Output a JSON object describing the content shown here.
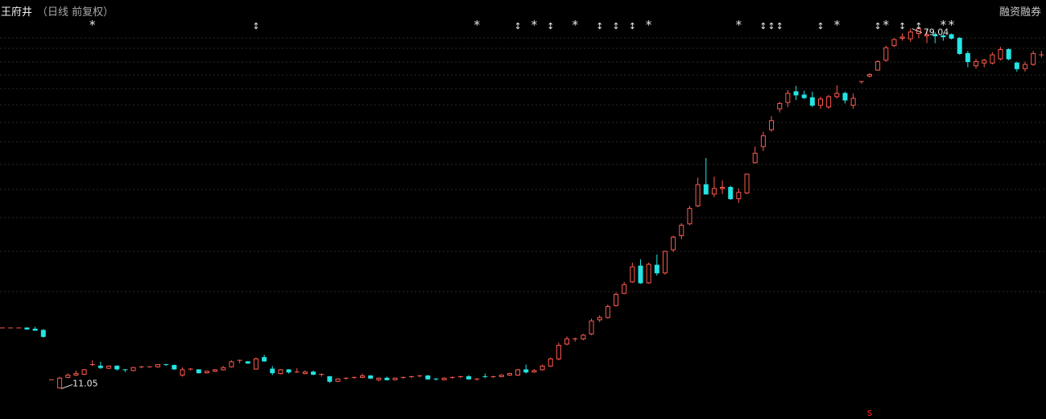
{
  "header": {
    "stock_name": "王府井",
    "mode": "（日线 前复权）",
    "right_label": "融资融券"
  },
  "colors": {
    "up": "#ff5a4e",
    "down": "#24e4e4",
    "marker": "#e8e8e8",
    "grid": "#2a2a2a",
    "label": "#e8e8e8",
    "bottom_mark": "#ff2020"
  },
  "chart_data": {
    "type": "candlestick",
    "price_range": [
      10,
      81
    ],
    "scale": "log",
    "gridlines": true,
    "max_annotation": "79.04",
    "min_annotation": "11.05",
    "bottom_mark": "s",
    "candles": [
      [
        15.4,
        15.4,
        15.4,
        15.4
      ],
      [
        15.4,
        15.4,
        15.4,
        15.4
      ],
      [
        15.4,
        15.4,
        15.4,
        15.4
      ],
      [
        15.4,
        15.4,
        15.4,
        15.3
      ],
      [
        15.3,
        15.5,
        15.2,
        15.2
      ],
      [
        15.2,
        15.3,
        14.6,
        14.7
      ],
      [
        11.6,
        11.6,
        11.6,
        11.6
      ],
      [
        11.1,
        11.8,
        11.05,
        11.7
      ],
      [
        11.75,
        12.0,
        11.7,
        11.9
      ],
      [
        11.9,
        12.2,
        11.85,
        12.0
      ],
      [
        11.95,
        12.3,
        11.9,
        12.25
      ],
      [
        12.6,
        12.9,
        12.5,
        12.6
      ],
      [
        12.5,
        12.8,
        12.3,
        12.4
      ],
      [
        12.35,
        12.55,
        12.3,
        12.5
      ],
      [
        12.5,
        12.55,
        12.2,
        12.3
      ],
      [
        12.25,
        12.3,
        12.1,
        12.2
      ],
      [
        12.2,
        12.45,
        12.15,
        12.4
      ],
      [
        12.4,
        12.5,
        12.35,
        12.45
      ],
      [
        12.45,
        12.5,
        12.4,
        12.45
      ],
      [
        12.45,
        12.6,
        12.4,
        12.6
      ],
      [
        12.6,
        12.65,
        12.5,
        12.55
      ],
      [
        12.55,
        12.6,
        12.25,
        12.3
      ],
      [
        11.9,
        12.4,
        11.8,
        12.25
      ],
      [
        12.25,
        12.35,
        12.2,
        12.3
      ],
      [
        12.25,
        12.3,
        12.0,
        12.05
      ],
      [
        12.05,
        12.2,
        12.0,
        12.15
      ],
      [
        12.15,
        12.3,
        12.1,
        12.25
      ],
      [
        12.25,
        12.5,
        12.2,
        12.4
      ],
      [
        12.45,
        12.9,
        12.4,
        12.8
      ],
      [
        12.85,
        12.95,
        12.7,
        12.9
      ],
      [
        12.8,
        12.85,
        12.65,
        12.7
      ],
      [
        12.3,
        13.1,
        12.25,
        13.0
      ],
      [
        13.1,
        13.3,
        12.8,
        12.85
      ],
      [
        12.3,
        12.5,
        11.9,
        12.05
      ],
      [
        12.0,
        12.3,
        11.95,
        12.25
      ],
      [
        12.25,
        12.3,
        12.0,
        12.1
      ],
      [
        12.1,
        12.35,
        12.05,
        12.1
      ],
      [
        12.0,
        12.2,
        11.95,
        12.1
      ],
      [
        12.1,
        12.2,
        11.9,
        11.95
      ],
      [
        11.9,
        12.0,
        11.8,
        11.95
      ],
      [
        11.8,
        11.85,
        11.4,
        11.5
      ],
      [
        11.5,
        11.7,
        11.45,
        11.65
      ],
      [
        11.65,
        11.75,
        11.6,
        11.7
      ],
      [
        11.7,
        11.8,
        11.65,
        11.75
      ],
      [
        11.75,
        12.0,
        11.7,
        11.85
      ],
      [
        11.85,
        11.9,
        11.65,
        11.7
      ],
      [
        11.6,
        11.75,
        11.5,
        11.7
      ],
      [
        11.7,
        11.8,
        11.55,
        11.6
      ],
      [
        11.6,
        11.75,
        11.55,
        11.7
      ],
      [
        11.7,
        11.8,
        11.65,
        11.75
      ],
      [
        11.75,
        11.85,
        11.7,
        11.8
      ],
      [
        11.8,
        11.9,
        11.75,
        11.85
      ],
      [
        11.85,
        11.9,
        11.6,
        11.65
      ],
      [
        11.65,
        11.7,
        11.55,
        11.6
      ],
      [
        11.6,
        11.75,
        11.55,
        11.7
      ],
      [
        11.7,
        11.8,
        11.65,
        11.75
      ],
      [
        11.75,
        11.85,
        11.7,
        11.8
      ],
      [
        11.8,
        11.9,
        11.6,
        11.65
      ],
      [
        11.6,
        11.7,
        11.55,
        11.65
      ],
      [
        11.8,
        12.0,
        11.7,
        11.75
      ],
      [
        11.75,
        11.85,
        11.7,
        11.8
      ],
      [
        11.8,
        11.95,
        11.75,
        11.9
      ],
      [
        11.9,
        12.05,
        11.85,
        12.0
      ],
      [
        11.9,
        12.3,
        11.85,
        12.25
      ],
      [
        12.25,
        12.6,
        12.0,
        12.1
      ],
      [
        12.1,
        12.3,
        12.05,
        12.2
      ],
      [
        12.25,
        12.6,
        12.2,
        12.5
      ],
      [
        12.5,
        13.1,
        12.45,
        13.0
      ],
      [
        13.0,
        14.2,
        12.9,
        14.0
      ],
      [
        14.1,
        14.7,
        14.0,
        14.5
      ],
      [
        14.5,
        14.6,
        14.3,
        14.5
      ],
      [
        14.5,
        14.9,
        14.4,
        14.8
      ],
      [
        14.9,
        16.2,
        14.8,
        16.0
      ],
      [
        16.1,
        16.5,
        15.9,
        16.3
      ],
      [
        16.3,
        17.5,
        16.2,
        17.3
      ],
      [
        17.4,
        18.7,
        17.3,
        18.5
      ],
      [
        18.6,
        19.8,
        18.5,
        19.5
      ],
      [
        19.8,
        22.0,
        19.7,
        21.5
      ],
      [
        21.6,
        22.4,
        19.6,
        19.7
      ],
      [
        19.7,
        22.0,
        19.6,
        21.8
      ],
      [
        21.7,
        23.0,
        20.5,
        20.8
      ],
      [
        20.8,
        23.5,
        20.6,
        23.4
      ],
      [
        23.6,
        25.5,
        23.3,
        25.3
      ],
      [
        25.5,
        27.3,
        25.0,
        27.0
      ],
      [
        27.2,
        30.0,
        27.0,
        29.6
      ],
      [
        30.0,
        35.0,
        29.8,
        33.7
      ],
      [
        33.7,
        39.0,
        32.4,
        32.0
      ],
      [
        32.0,
        35.2,
        31.5,
        33.0
      ],
      [
        33.0,
        34.5,
        32.0,
        33.2
      ],
      [
        33.2,
        33.5,
        31.0,
        31.2
      ],
      [
        31.2,
        33.0,
        30.5,
        32.3
      ],
      [
        32.2,
        35.8,
        32.0,
        35.7
      ],
      [
        38.0,
        41.5,
        37.8,
        40.0
      ],
      [
        41.5,
        45.0,
        40.5,
        44.0
      ],
      [
        45.5,
        49.0,
        45.0,
        47.8
      ],
      [
        51.0,
        53.0,
        50.0,
        52.5
      ],
      [
        52.8,
        56.5,
        51.5,
        55.5
      ],
      [
        56.0,
        57.8,
        53.5,
        55.0
      ],
      [
        55.0,
        56.3,
        53.8,
        54.2
      ],
      [
        54.2,
        56.0,
        51.5,
        52.0
      ],
      [
        52.0,
        54.5,
        51.0,
        53.8
      ],
      [
        51.5,
        55.0,
        51.0,
        54.5
      ],
      [
        54.5,
        58.0,
        54.0,
        55.5
      ],
      [
        55.5,
        56.0,
        52.5,
        53.5
      ],
      [
        52.0,
        55.5,
        51.0,
        54.0
      ],
      [
        59.0,
        59.3,
        58.5,
        59.2
      ],
      [
        61.0,
        62.0,
        60.5,
        61.5
      ],
      [
        63.0,
        66.5,
        62.8,
        66.0
      ],
      [
        66.5,
        72.0,
        66.0,
        71.2
      ],
      [
        72.0,
        75.0,
        71.5,
        74.5
      ],
      [
        75.0,
        77.0,
        74.0,
        75.5
      ],
      [
        74.8,
        79.04,
        73.5,
        77.6
      ],
      [
        77.0,
        79.0,
        75.0,
        79.0
      ],
      [
        76.0,
        79.0,
        73.0,
        76.5
      ],
      [
        76.5,
        77.5,
        73.0,
        76.0
      ],
      [
        76.0,
        77.0,
        74.0,
        75.6
      ],
      [
        76.5,
        77.0,
        74.5,
        75.0
      ],
      [
        75.0,
        75.5,
        68.5,
        69.0
      ],
      [
        69.0,
        70.0,
        64.0,
        66.0
      ],
      [
        64.5,
        67.0,
        63.5,
        66.0
      ],
      [
        65.5,
        67.0,
        64.0,
        66.5
      ],
      [
        65.5,
        69.5,
        65.0,
        68.5
      ],
      [
        67.0,
        71.5,
        66.5,
        70.5
      ],
      [
        70.5,
        71.0,
        66.5,
        67.0
      ],
      [
        65.5,
        66.0,
        62.5,
        63.5
      ],
      [
        63.5,
        66.0,
        62.5,
        65.0
      ],
      [
        65.0,
        70.0,
        64.5,
        69.0
      ],
      [
        68.5,
        70.0,
        67.5,
        68.5
      ]
    ],
    "markers": [
      {
        "index": 11,
        "symbol": "*"
      },
      {
        "index": 31,
        "symbol": "↕"
      },
      {
        "index": 58,
        "symbol": "*"
      },
      {
        "index": 63,
        "symbol": "↕"
      },
      {
        "index": 65,
        "symbol": "*"
      },
      {
        "index": 67,
        "symbol": "↕"
      },
      {
        "index": 70,
        "symbol": "*"
      },
      {
        "index": 73,
        "symbol": "↕"
      },
      {
        "index": 75,
        "symbol": "↕"
      },
      {
        "index": 77,
        "symbol": "↕"
      },
      {
        "index": 79,
        "symbol": "*"
      },
      {
        "index": 90,
        "symbol": "*"
      },
      {
        "index": 93,
        "symbol": "↕"
      },
      {
        "index": 94,
        "symbol": "↕"
      },
      {
        "index": 95,
        "symbol": "↕"
      },
      {
        "index": 100,
        "symbol": "↕"
      },
      {
        "index": 102,
        "symbol": "*"
      },
      {
        "index": 107,
        "symbol": "↕"
      },
      {
        "index": 108,
        "symbol": "*"
      },
      {
        "index": 110,
        "symbol": "↕"
      },
      {
        "index": 112,
        "symbol": "↕"
      },
      {
        "index": 115,
        "symbol": "*"
      },
      {
        "index": 116,
        "symbol": "*"
      }
    ]
  }
}
